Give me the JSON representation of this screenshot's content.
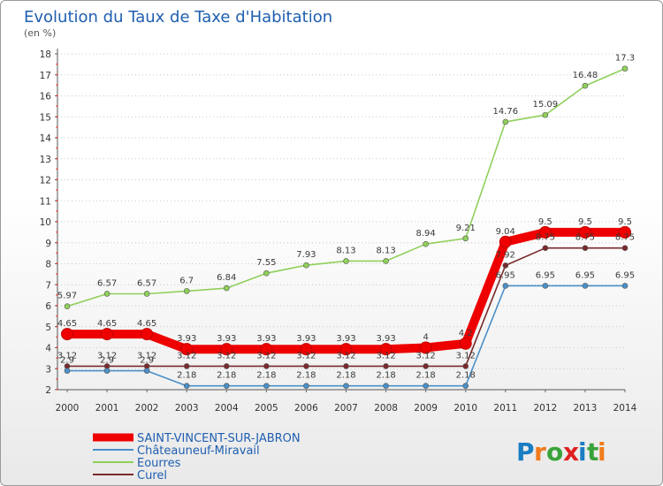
{
  "chart_data": {
    "type": "line",
    "title": "Evolution du Taux de Taxe d'Habitation",
    "subtitle": "(en %)",
    "xlabel": "",
    "ylabel": "",
    "ylim": [
      2,
      18
    ],
    "ytick_step": 1,
    "grid": "dotted-y",
    "legend_position": "bottom-left",
    "x": [
      "2000",
      "2001",
      "2002",
      "2003",
      "2004",
      "2005",
      "2006",
      "2007",
      "2008",
      "2009",
      "2010",
      "2011",
      "2012",
      "2013",
      "2014"
    ],
    "series": [
      {
        "name": "SAINT-VINCENT-SUR-JABRON",
        "color": "#ee0000",
        "values": [
          4.65,
          4.65,
          4.65,
          3.93,
          3.93,
          3.93,
          3.93,
          3.93,
          3.93,
          4,
          4.2,
          9.04,
          9.5,
          9.5,
          9.5
        ],
        "labels": [
          "4.65",
          "4.65",
          "4.65",
          "3.93",
          "3.93",
          "3.93",
          "3.93",
          "3.93",
          "3.93",
          "4",
          "4.2",
          "9.04",
          "9.5",
          "9.5",
          "9.5"
        ]
      },
      {
        "name": "Châteauneuf-Miravail",
        "color": "#4a90c8",
        "values": [
          2.9,
          2.9,
          2.9,
          2.18,
          2.18,
          2.18,
          2.18,
          2.18,
          2.18,
          2.18,
          2.18,
          6.95,
          6.95,
          6.95,
          6.95
        ],
        "labels": [
          "2.9",
          "2.9",
          "2.9",
          "2.18",
          "2.18",
          "2.18",
          "2.18",
          "2.18",
          "2.18",
          "2.18",
          "2.18",
          "6.95",
          "6.95",
          "6.95",
          "6.95"
        ]
      },
      {
        "name": "Eourres",
        "color": "#8fd05a",
        "values": [
          5.97,
          6.57,
          6.57,
          6.7,
          6.84,
          7.55,
          7.93,
          8.13,
          8.13,
          8.94,
          9.21,
          14.76,
          15.09,
          16.48,
          17.3
        ],
        "labels": [
          "5.97",
          "6.57",
          "6.57",
          "6.7",
          "6.84",
          "7.55",
          "7.93",
          "8.13",
          "8.13",
          "8.94",
          "9.21",
          "14.76",
          "15.09",
          "16.48",
          "17.3"
        ]
      },
      {
        "name": "Curel",
        "color": "#7a2a2a",
        "values": [
          3.12,
          3.12,
          3.12,
          3.12,
          3.12,
          3.12,
          3.12,
          3.12,
          3.12,
          3.12,
          3.12,
          7.92,
          8.75,
          8.75,
          8.75
        ],
        "labels": [
          "3.12",
          "3.12",
          "3.12",
          "3.12",
          "3.12",
          "3.12",
          "3.12",
          "3.12",
          "3.12",
          "3.12",
          "3.12",
          "7.92",
          "8.75",
          "8.75",
          "8.75"
        ]
      }
    ]
  },
  "logo": {
    "text": "Proxiti",
    "letters": [
      "P",
      "r",
      "o",
      "x",
      "i",
      "t",
      "i"
    ],
    "colors": [
      "#1a7dc4",
      "#f07b1e",
      "#3aa23a",
      "#e02020",
      "#1a7dc4",
      "#3aa23a",
      "#f07b1e"
    ]
  }
}
